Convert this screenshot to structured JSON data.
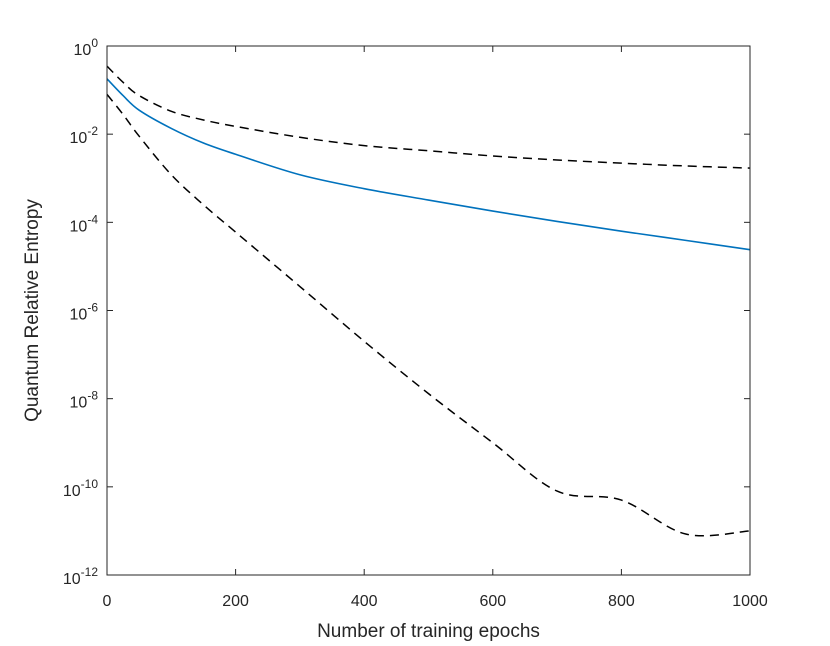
{
  "chart_data": {
    "type": "line",
    "title": "",
    "xlabel": "Number of training epochs",
    "ylabel": "Quantum Relative Entropy",
    "xlim": [
      0,
      1000
    ],
    "ylim": [
      1e-12,
      1
    ],
    "yscale": "log",
    "grid": false,
    "x_ticks": [
      0,
      200,
      400,
      600,
      800,
      1000
    ],
    "y_ticks": [
      {
        "base": "10",
        "exp": "0",
        "value": 1
      },
      {
        "base": "10",
        "exp": "-2",
        "value": 0.01
      },
      {
        "base": "10",
        "exp": "-4",
        "value": 0.0001
      },
      {
        "base": "10",
        "exp": "-6",
        "value": 1e-06
      },
      {
        "base": "10",
        "exp": "-8",
        "value": 1e-08
      },
      {
        "base": "10",
        "exp": "-10",
        "value": 1e-10
      },
      {
        "base": "10",
        "exp": "-12",
        "value": 1e-12
      }
    ],
    "series": [
      {
        "style": "solid",
        "color": "#0072BD",
        "x": [
          0,
          25,
          50,
          100,
          150,
          200,
          300,
          400,
          500,
          600,
          700,
          800,
          900,
          1000
        ],
        "y": [
          0.18,
          0.075,
          0.035,
          0.0135,
          0.0063,
          0.0035,
          0.0012,
          0.00058,
          0.00032,
          0.00018,
          0.000105,
          6.3e-05,
          3.9e-05,
          2.4e-05
        ]
      },
      {
        "style": "dashed",
        "color": "#000000",
        "x": [
          0,
          25,
          50,
          100,
          150,
          200,
          300,
          400,
          500,
          600,
          700,
          800,
          900,
          1000
        ],
        "y": [
          0.35,
          0.15,
          0.075,
          0.033,
          0.021,
          0.015,
          0.0085,
          0.0055,
          0.0042,
          0.0032,
          0.0026,
          0.0022,
          0.0019,
          0.0017
        ]
      },
      {
        "style": "dashed",
        "color": "#000000",
        "x": [
          0,
          25,
          50,
          100,
          150,
          200,
          300,
          400,
          500,
          600,
          700,
          800,
          900,
          1000
        ],
        "y": [
          0.08,
          0.028,
          0.009,
          0.0012,
          0.00025,
          6e-05,
          3.5e-06,
          2e-07,
          1.3e-08,
          1e-09,
          8e-11,
          5e-11,
          8.5e-12,
          1e-11
        ]
      }
    ]
  }
}
